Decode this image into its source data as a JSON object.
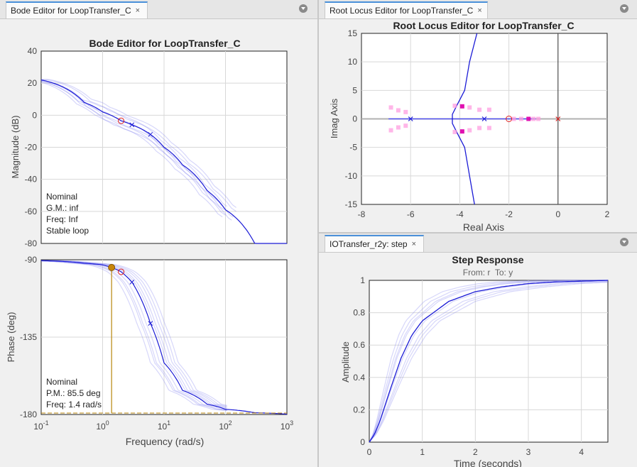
{
  "panes": {
    "bode": {
      "tab_label": "Bode Editor for LoopTransfer_C",
      "close_glyph": "×",
      "title": "Bode Editor for LoopTransfer_C",
      "magnitude": {
        "ylabel": "Magnitude (dB)",
        "y_ticks": [
          "40",
          "20",
          "0",
          "-20",
          "-40",
          "-60",
          "-80"
        ],
        "info": [
          "Nominal",
          "G.M.: inf",
          "Freq: Inf",
          "Stable loop"
        ]
      },
      "phase": {
        "ylabel": "Phase (deg)",
        "y_ticks": [
          "-90",
          "-135",
          "-180"
        ],
        "info": [
          "Nominal",
          "P.M.: 85.5 deg",
          "Freq: 1.4 rad/s"
        ]
      },
      "xlabel": "Frequency (rad/s)",
      "x_ticks": [
        {
          "base": "10",
          "exp": "-1"
        },
        {
          "base": "10",
          "exp": "0"
        },
        {
          "base": "10",
          "exp": "1"
        },
        {
          "base": "10",
          "exp": "2"
        },
        {
          "base": "10",
          "exp": "3"
        }
      ]
    },
    "root_locus": {
      "tab_label": "Root Locus Editor for LoopTransfer_C",
      "close_glyph": "×",
      "title": "Root Locus Editor for LoopTransfer_C",
      "xlabel": "Real Axis",
      "ylabel": "Imag Axis",
      "x_ticks": [
        "-8",
        "-6",
        "-4",
        "-2",
        "0",
        "2"
      ],
      "y_ticks": [
        "15",
        "10",
        "5",
        "0",
        "-5",
        "-10",
        "-15"
      ]
    },
    "step": {
      "tab_label": "IOTransfer_r2y: step",
      "close_glyph": "×",
      "title": "Step Response",
      "subtitle": "From: r  To: y",
      "xlabel": "Time (seconds)",
      "ylabel": "Amplitude",
      "x_ticks": [
        "0",
        "1",
        "2",
        "3",
        "4"
      ],
      "y_ticks": [
        "1",
        "0.8",
        "0.6",
        "0.4",
        "0.2",
        "0"
      ]
    }
  },
  "chart_data": [
    {
      "type": "line",
      "title": "Bode Editor for LoopTransfer_C (Magnitude)",
      "xlabel": "Frequency (rad/s)",
      "ylabel": "Magnitude (dB)",
      "xscale": "log",
      "xlim": [
        0.1,
        1000
      ],
      "ylim": [
        -80,
        40
      ],
      "series": [
        {
          "name": "Nominal",
          "x": [
            0.1,
            0.5,
            1,
            2,
            3,
            6,
            10,
            20,
            50,
            100,
            300
          ],
          "y": [
            22,
            8,
            2,
            -3.5,
            -6,
            -12,
            -20,
            -31,
            -47,
            -59,
            -80
          ]
        }
      ],
      "pole_markers_x": [
        3,
        6
      ],
      "zero_marker_x": [
        2
      ],
      "info": [
        "Nominal",
        "G.M.: inf",
        "Freq: Inf",
        "Stable loop"
      ]
    },
    {
      "type": "line",
      "title": "Bode Editor for LoopTransfer_C (Phase)",
      "xlabel": "Frequency (rad/s)",
      "ylabel": "Phase (deg)",
      "xscale": "log",
      "xlim": [
        0.1,
        1000
      ],
      "ylim": [
        -180,
        -90
      ],
      "series": [
        {
          "name": "Nominal",
          "x": [
            0.1,
            0.5,
            1,
            1.4,
            2,
            3,
            6,
            10,
            20,
            50,
            100,
            300,
            1000
          ],
          "y": [
            -90.5,
            -92,
            -93,
            -94.5,
            -97,
            -103,
            -127,
            -150,
            -166,
            -174,
            -177,
            -179,
            -179.8
          ]
        }
      ],
      "phase_margin_point": {
        "x": 1.4,
        "y": -94.5
      },
      "pole_markers_x": [
        3,
        6
      ],
      "zero_marker_x": [
        2
      ],
      "info": [
        "Nominal",
        "P.M.: 85.5 deg",
        "Freq: 1.4 rad/s"
      ]
    },
    {
      "type": "scatter",
      "title": "Root Locus Editor for LoopTransfer_C",
      "xlabel": "Real Axis",
      "ylabel": "Imag Axis",
      "xlim": [
        -8,
        2
      ],
      "ylim": [
        -15,
        15
      ],
      "open_loop_poles": [
        [
          -6,
          0
        ],
        [
          -3,
          0
        ],
        [
          0,
          0
        ]
      ],
      "zeros": [
        [
          -2,
          0
        ]
      ],
      "closed_loop_poles": [
        [
          -3.9,
          2.2
        ],
        [
          -3.9,
          -2.2
        ],
        [
          -1.2,
          0
        ]
      ],
      "uncertain_poles": [
        [
          -6.8,
          2
        ],
        [
          -6.5,
          1.5
        ],
        [
          -6.2,
          1.2
        ],
        [
          -6.8,
          -2
        ],
        [
          -6.5,
          -1.5
        ],
        [
          -6.2,
          -1.2
        ],
        [
          -4.2,
          2.3
        ],
        [
          -3.6,
          2
        ],
        [
          -3.2,
          1.6
        ],
        [
          -2.8,
          1.6
        ],
        [
          -4.2,
          -2.3
        ],
        [
          -3.6,
          -2
        ],
        [
          -3.2,
          -1.6
        ],
        [
          -2.8,
          -1.6
        ],
        [
          -1.8,
          0
        ],
        [
          -1.5,
          0
        ],
        [
          -1.0,
          0
        ],
        [
          -0.8,
          0
        ]
      ],
      "branches": [
        {
          "x": [
            -3.3,
            -3.6,
            -3.8,
            -4.1,
            -4.3,
            -4.3,
            -4.1,
            -3.8,
            -3.6,
            -3.4
          ],
          "y": [
            15,
            10,
            5,
            2.5,
            0.8,
            -0.8,
            -2.5,
            -5,
            -10,
            -15
          ]
        },
        {
          "x": [
            -8,
            2
          ],
          "y": [
            0,
            0
          ]
        }
      ]
    },
    {
      "type": "line",
      "title": "Step Response",
      "subtitle": "From: r  To: y",
      "xlabel": "Time (seconds)",
      "ylabel": "Amplitude",
      "xlim": [
        0,
        4.5
      ],
      "ylim": [
        0,
        1
      ],
      "series": [
        {
          "name": "Nominal",
          "x": [
            0,
            0.1,
            0.2,
            0.4,
            0.6,
            0.8,
            1.0,
            1.5,
            2.0,
            2.5,
            3.0,
            3.5,
            4.0,
            4.5
          ],
          "y": [
            0,
            0.05,
            0.13,
            0.33,
            0.52,
            0.66,
            0.75,
            0.87,
            0.93,
            0.96,
            0.98,
            0.99,
            0.995,
            1.0
          ]
        }
      ]
    }
  ]
}
